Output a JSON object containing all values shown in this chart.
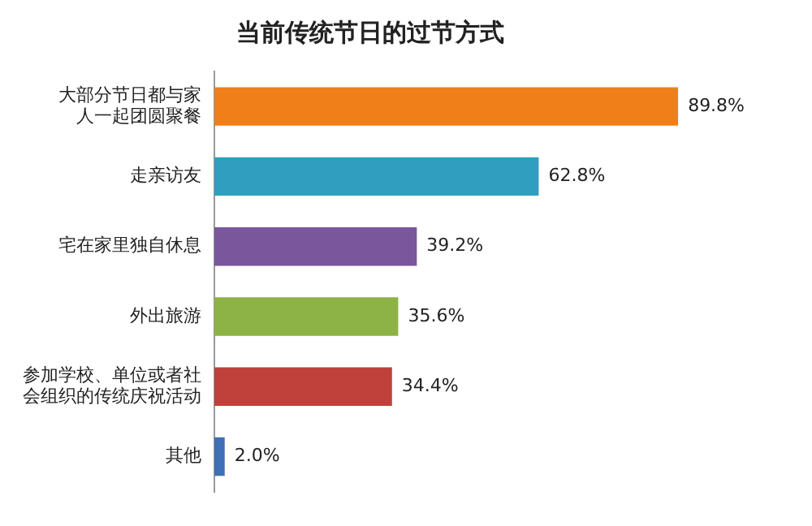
{
  "chart_data": {
    "type": "bar",
    "orientation": "horizontal",
    "title": "当前传统节日的过节方式",
    "categories": [
      "大部分节日都与家人一起团圆聚餐",
      "走亲访友",
      "宅在家里独自休息",
      "外出旅游",
      "参加学校、单位或者社会组织的传统庆祝活动",
      "其他"
    ],
    "values": [
      89.8,
      62.8,
      39.2,
      35.6,
      34.4,
      2.0
    ],
    "colors": [
      "#f07f1a",
      "#2e9fbf",
      "#7a569c",
      "#8db346",
      "#c0403b",
      "#3f6fb5"
    ],
    "value_labels": [
      "89.8%",
      "62.8%",
      "39.2%",
      "35.6%",
      "34.4%",
      "2.0%"
    ],
    "legend": false
  }
}
